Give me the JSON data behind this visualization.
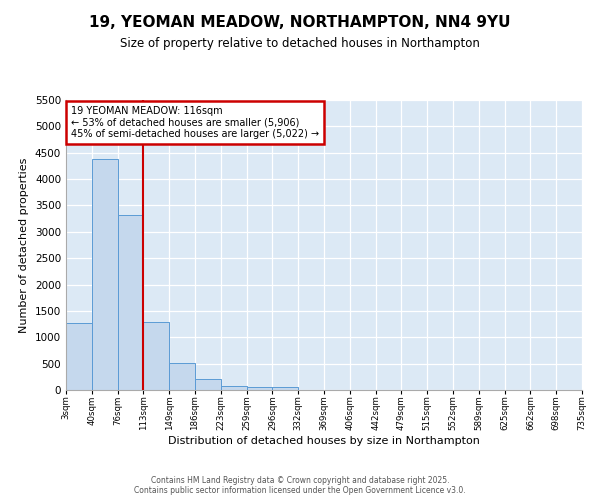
{
  "title_line1": "19, YEOMAN MEADOW, NORTHAMPTON, NN4 9YU",
  "title_line2": "Size of property relative to detached houses in Northampton",
  "xlabel": "Distribution of detached houses by size in Northampton",
  "ylabel": "Number of detached properties",
  "bar_values": [
    1270,
    4380,
    3310,
    1290,
    510,
    215,
    85,
    65,
    50,
    0,
    0,
    0,
    0,
    0,
    0,
    0,
    0,
    0,
    0,
    0
  ],
  "categories": [
    "3sqm",
    "40sqm",
    "76sqm",
    "113sqm",
    "149sqm",
    "186sqm",
    "223sqm",
    "259sqm",
    "296sqm",
    "332sqm",
    "369sqm",
    "406sqm",
    "442sqm",
    "479sqm",
    "515sqm",
    "552sqm",
    "589sqm",
    "625sqm",
    "662sqm",
    "698sqm",
    "735sqm"
  ],
  "bar_color": "#c5d8ed",
  "bar_edge_color": "#5b9bd5",
  "fig_bg_color": "#ffffff",
  "ax_bg_color": "#dce9f5",
  "grid_color": "#ffffff",
  "red_line_x": 3.0,
  "annotation_title": "19 YEOMAN MEADOW: 116sqm",
  "annotation_line1": "← 53% of detached houses are smaller (5,906)",
  "annotation_line2": "45% of semi-detached houses are larger (5,022) →",
  "annotation_box_facecolor": "#ffffff",
  "annotation_border_color": "#cc0000",
  "footer_line1": "Contains HM Land Registry data © Crown copyright and database right 2025.",
  "footer_line2": "Contains public sector information licensed under the Open Government Licence v3.0.",
  "ylim_max": 5500,
  "yticks": [
    0,
    500,
    1000,
    1500,
    2000,
    2500,
    3000,
    3500,
    4000,
    4500,
    5000,
    5500
  ]
}
